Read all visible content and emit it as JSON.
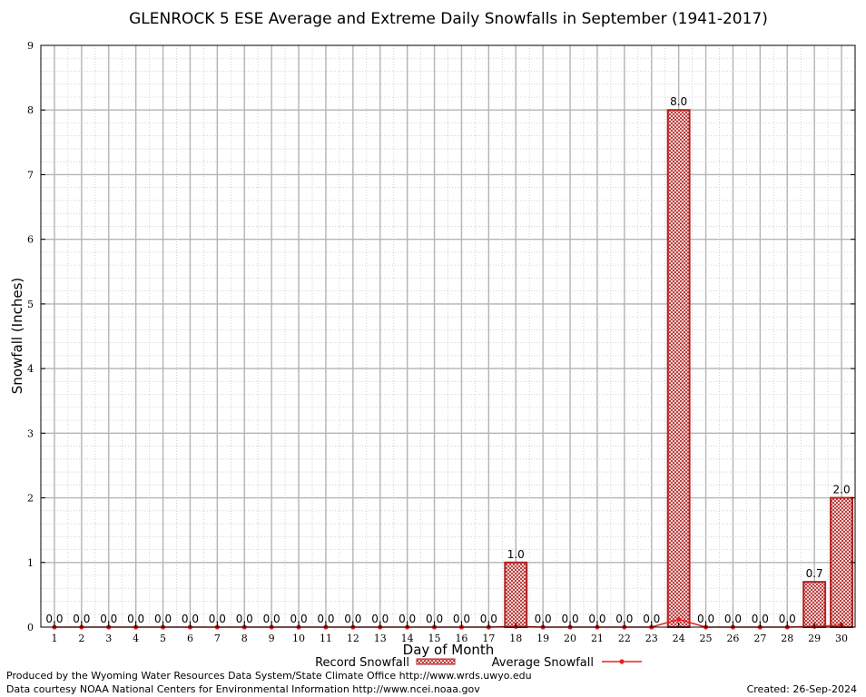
{
  "chart_data": {
    "type": "bar",
    "title": "GLENROCK 5 ESE Average and Extreme Daily Snowfalls in September (1941-2017)",
    "xlabel": "Day of Month",
    "ylabel": "Snowfall (Inches)",
    "ylim": [
      0,
      9
    ],
    "yticks": [
      "0",
      "1",
      "2",
      "3",
      "4",
      "5",
      "6",
      "7",
      "8",
      "9"
    ],
    "categories": [
      "1",
      "2",
      "3",
      "4",
      "5",
      "6",
      "7",
      "8",
      "9",
      "10",
      "11",
      "12",
      "13",
      "14",
      "15",
      "16",
      "17",
      "18",
      "19",
      "20",
      "21",
      "22",
      "23",
      "24",
      "25",
      "26",
      "27",
      "28",
      "29",
      "30"
    ],
    "grid": true,
    "legend_position": "bottom",
    "series": [
      {
        "name": "Record Snowfall",
        "kind": "bar",
        "color": "#b22222",
        "values": [
          0,
          0,
          0,
          0,
          0,
          0,
          0,
          0,
          0,
          0,
          0,
          0,
          0,
          0,
          0,
          0,
          0,
          1.0,
          0,
          0,
          0,
          0,
          0,
          8.0,
          0,
          0,
          0,
          0,
          0.7,
          2.0
        ],
        "labels": [
          "0.0",
          "0.0",
          "0.0",
          "0.0",
          "0.0",
          "0.0",
          "0.0",
          "0.0",
          "0.0",
          "0.0",
          "0.0",
          "0.0",
          "0.0",
          "0.0",
          "0.0",
          "0.0",
          "0.0",
          "1.0",
          "0.0",
          "0.0",
          "0.0",
          "0.0",
          "0.0",
          "8.0",
          "0.0",
          "0.0",
          "0.0",
          "0.0",
          "0.7",
          "2.0"
        ]
      },
      {
        "name": "Average Snowfall",
        "kind": "line",
        "color": "#e8201f",
        "values": [
          0,
          0,
          0,
          0,
          0,
          0,
          0,
          0,
          0,
          0,
          0,
          0,
          0,
          0,
          0,
          0,
          0,
          0.01,
          0,
          0,
          0,
          0,
          0,
          0.12,
          0,
          0,
          0,
          0,
          0.01,
          0.03
        ]
      }
    ]
  },
  "footer": {
    "produced_by": "Produced by the Wyoming Water Resources Data System/State Climate Office http://www.wrds.uwyo.edu",
    "data_courtesy": "Data courtesy NOAA National Centers for Environmental Information http://www.ncei.noaa.gov",
    "created": "Created:  26-Sep-2024"
  }
}
